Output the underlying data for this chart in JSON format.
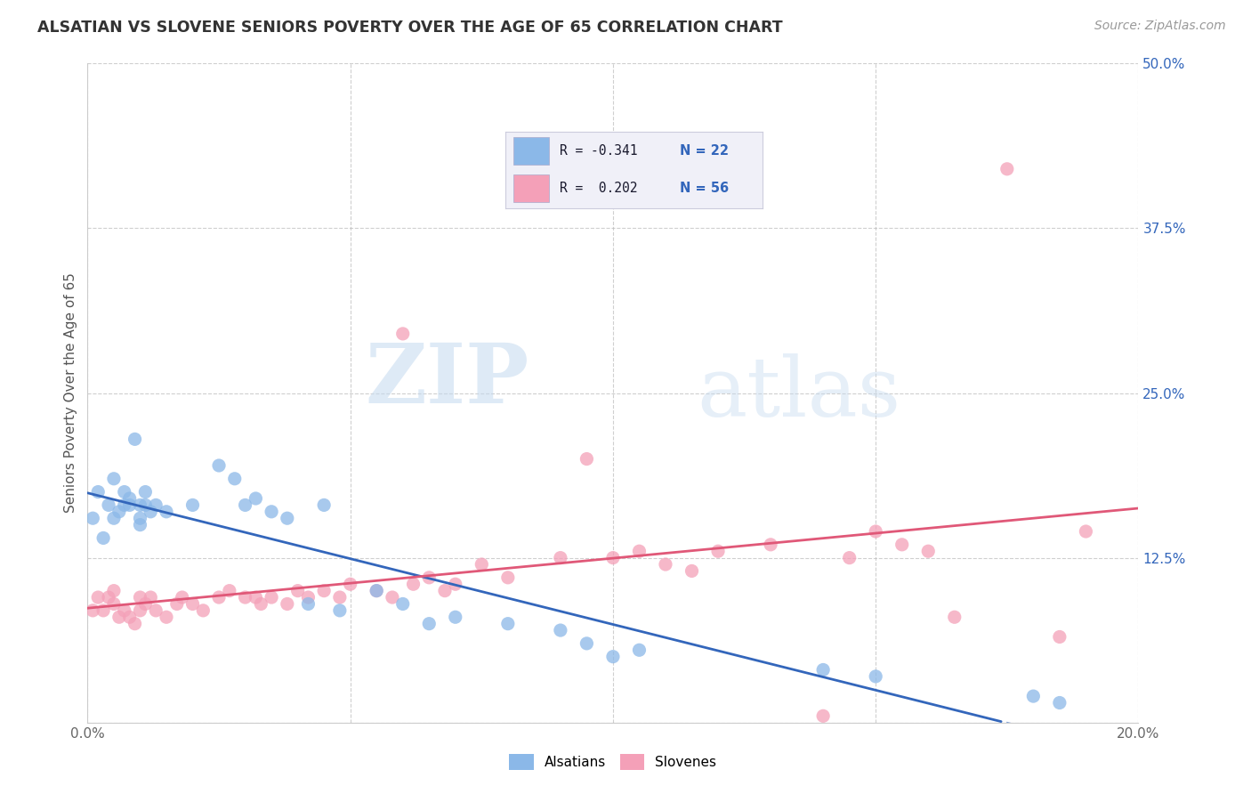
{
  "title": "ALSATIAN VS SLOVENE SENIORS POVERTY OVER THE AGE OF 65 CORRELATION CHART",
  "source_text": "Source: ZipAtlas.com",
  "ylabel": "Seniors Poverty Over the Age of 65",
  "xlim": [
    0.0,
    0.2
  ],
  "ylim": [
    0.0,
    0.5
  ],
  "xticks": [
    0.0,
    0.05,
    0.1,
    0.15,
    0.2
  ],
  "xticklabels": [
    "0.0%",
    "",
    "",
    "",
    "20.0%"
  ],
  "ytick_positions": [
    0.0,
    0.125,
    0.25,
    0.375,
    0.5
  ],
  "yticklabels": [
    "",
    "12.5%",
    "25.0%",
    "37.5%",
    "50.0%"
  ],
  "alsatian_color": "#8BB8E8",
  "slovene_color": "#F4A0B8",
  "alsatian_line_color": "#3366BB",
  "slovene_line_color": "#E05878",
  "watermark_zip": "ZIP",
  "watermark_atlas": "atlas",
  "background_color": "#FFFFFF",
  "grid_color": "#BBBBBB",
  "alsatian_x": [
    0.001,
    0.002,
    0.003,
    0.004,
    0.005,
    0.005,
    0.006,
    0.007,
    0.007,
    0.008,
    0.008,
    0.009,
    0.01,
    0.01,
    0.01,
    0.011,
    0.011,
    0.012,
    0.013,
    0.015,
    0.02,
    0.025,
    0.028,
    0.03,
    0.032,
    0.035,
    0.038,
    0.042,
    0.045,
    0.048,
    0.055,
    0.06,
    0.065,
    0.07,
    0.08,
    0.09,
    0.095,
    0.1,
    0.105,
    0.14,
    0.15,
    0.18,
    0.185
  ],
  "alsatian_y": [
    0.155,
    0.175,
    0.14,
    0.165,
    0.185,
    0.155,
    0.16,
    0.165,
    0.175,
    0.165,
    0.17,
    0.215,
    0.165,
    0.155,
    0.15,
    0.175,
    0.165,
    0.16,
    0.165,
    0.16,
    0.165,
    0.195,
    0.185,
    0.165,
    0.17,
    0.16,
    0.155,
    0.09,
    0.165,
    0.085,
    0.1,
    0.09,
    0.075,
    0.08,
    0.075,
    0.07,
    0.06,
    0.05,
    0.055,
    0.04,
    0.035,
    0.02,
    0.015
  ],
  "slovene_x": [
    0.001,
    0.002,
    0.003,
    0.004,
    0.005,
    0.005,
    0.006,
    0.007,
    0.008,
    0.009,
    0.01,
    0.01,
    0.011,
    0.012,
    0.013,
    0.015,
    0.017,
    0.018,
    0.02,
    0.022,
    0.025,
    0.027,
    0.03,
    0.032,
    0.033,
    0.035,
    0.038,
    0.04,
    0.042,
    0.045,
    0.048,
    0.05,
    0.055,
    0.058,
    0.06,
    0.062,
    0.065,
    0.068,
    0.07,
    0.075,
    0.08,
    0.09,
    0.095,
    0.1,
    0.105,
    0.11,
    0.115,
    0.12,
    0.13,
    0.14,
    0.145,
    0.15,
    0.155,
    0.16,
    0.165,
    0.175,
    0.185,
    0.19
  ],
  "slovene_y": [
    0.085,
    0.095,
    0.085,
    0.095,
    0.1,
    0.09,
    0.08,
    0.085,
    0.08,
    0.075,
    0.095,
    0.085,
    0.09,
    0.095,
    0.085,
    0.08,
    0.09,
    0.095,
    0.09,
    0.085,
    0.095,
    0.1,
    0.095,
    0.095,
    0.09,
    0.095,
    0.09,
    0.1,
    0.095,
    0.1,
    0.095,
    0.105,
    0.1,
    0.095,
    0.295,
    0.105,
    0.11,
    0.1,
    0.105,
    0.12,
    0.11,
    0.125,
    0.2,
    0.125,
    0.13,
    0.12,
    0.115,
    0.13,
    0.135,
    0.005,
    0.125,
    0.145,
    0.135,
    0.13,
    0.08,
    0.42,
    0.065,
    0.145
  ],
  "legend_box_color": "#F0F0F8",
  "legend_border_color": "#CCCCDD",
  "title_color": "#333333",
  "tick_color_x": "#666666",
  "tick_color_y": "#3366BB",
  "source_color": "#999999"
}
